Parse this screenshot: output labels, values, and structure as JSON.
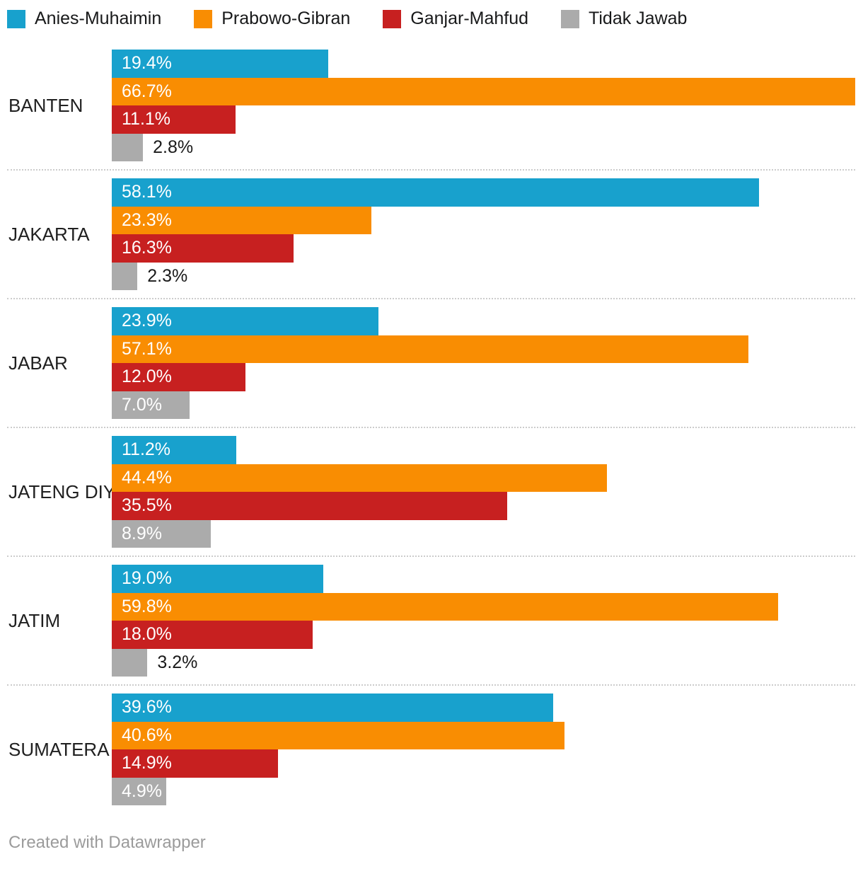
{
  "chart_data": {
    "type": "bar",
    "orientation": "horizontal",
    "title": "",
    "categories": [
      "BANTEN",
      "JAKARTA",
      "JABAR",
      "JATENG DIY",
      "JATIM",
      "SUMATERA"
    ],
    "series": [
      {
        "name": "Anies-Muhaimin",
        "color": "#18a1cd",
        "values": [
          19.4,
          58.1,
          23.9,
          11.2,
          19.0,
          39.6
        ]
      },
      {
        "name": "Prabowo-Gibran",
        "color": "#f98d02",
        "values": [
          66.7,
          23.3,
          57.1,
          44.4,
          59.8,
          40.6
        ]
      },
      {
        "name": "Ganjar-Mahfud",
        "color": "#c72020",
        "values": [
          11.1,
          16.3,
          12.0,
          35.5,
          18.0,
          14.9
        ]
      },
      {
        "name": "Tidak Jawab",
        "color": "#ababab",
        "values": [
          2.8,
          2.3,
          7.0,
          8.9,
          3.2,
          4.9
        ]
      }
    ],
    "value_suffix": "%",
    "value_decimals": 1,
    "xmax": 66.7,
    "legend_position": "top",
    "grid": "off",
    "separator_style": "dotted",
    "label_color_inside": "#ffffff",
    "label_color_outside": "#1a1a1a"
  },
  "footer": {
    "credit": "Created with Datawrapper"
  }
}
